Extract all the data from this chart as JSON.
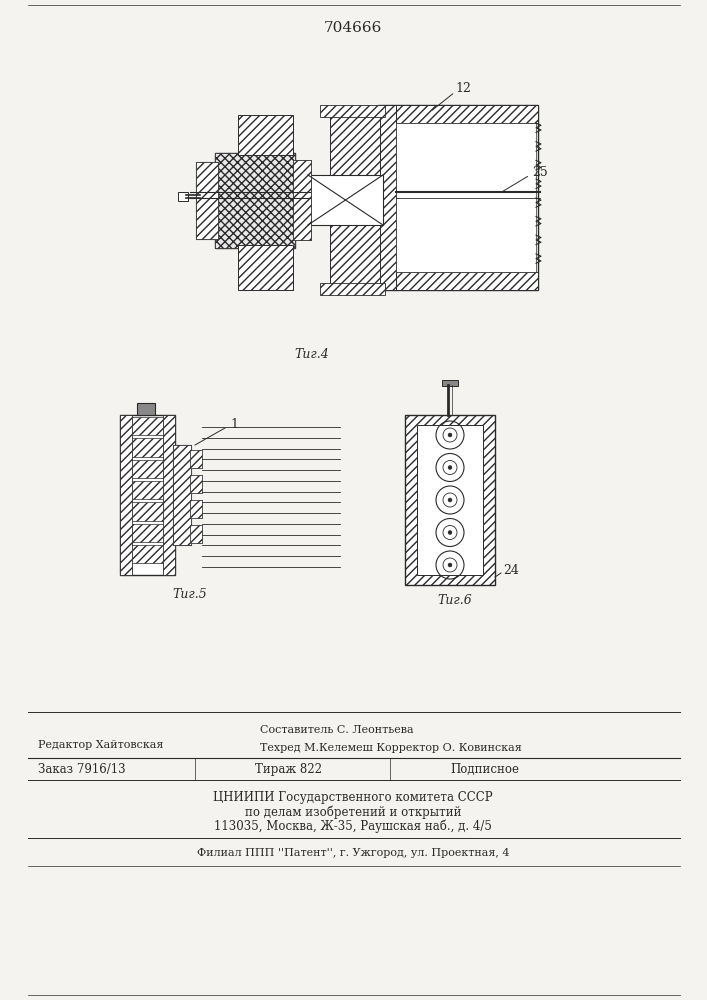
{
  "patent_number": "704666",
  "fig4_label": "Τиг.4",
  "fig5_label": "Τиг.5",
  "fig6_label": "Τиг.6",
  "label_12": "12",
  "label_25": "25",
  "label_24": "24",
  "label_1": "1",
  "footer_line1_left": "Редактор Хайтовская",
  "footer_line1_right": "Составитель С. Леонтьева",
  "footer_line2_right": "Техред М.Келемеш Корректор О. Ковинская",
  "footer_order": "Заказ 7916/13",
  "footer_tirazh": "Тираж 822",
  "footer_podpisnoe": "Подписное",
  "footer_cniip1": "ЦНИИПИ Государственного комитета СССР",
  "footer_cniip2": "по делам изобретений и открытий",
  "footer_cniip3": "113035, Москва, Ж-35, Раушская наб., д. 4/5",
  "footer_filial": "Филиал ППП ''Патент'', г. Ужгород, ул. Проектная, 4",
  "bg_color": "#f5f3ef",
  "line_color": "#2a2a2a"
}
